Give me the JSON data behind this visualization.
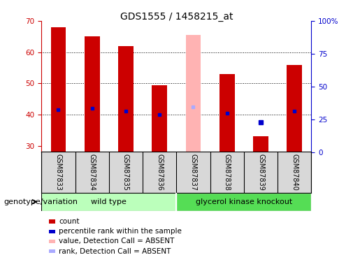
{
  "title": "GDS1555 / 1458215_at",
  "samples": [
    "GSM87833",
    "GSM87834",
    "GSM87835",
    "GSM87836",
    "GSM87837",
    "GSM87838",
    "GSM87839",
    "GSM87840"
  ],
  "count_values": [
    68,
    65,
    62,
    49.5,
    null,
    53,
    33,
    56
  ],
  "absent_value": [
    null,
    null,
    null,
    null,
    65.5,
    null,
    null,
    null
  ],
  "percentile_values": [
    41.5,
    42,
    41,
    40,
    null,
    40.5,
    null,
    41
  ],
  "absent_percentile": [
    null,
    null,
    null,
    null,
    42.5,
    null,
    null,
    null
  ],
  "standalone_percentile": [
    null,
    null,
    null,
    null,
    null,
    null,
    37.5,
    null
  ],
  "ylim": [
    28,
    70
  ],
  "yticks": [
    30,
    40,
    50,
    60,
    70
  ],
  "y2ticks": [
    0,
    25,
    50,
    75,
    100
  ],
  "count_color": "#cc0000",
  "absent_color": "#ffb3b3",
  "percentile_color": "#0000cc",
  "absent_percentile_color": "#aaaaff",
  "wildtype_color": "#bbffbb",
  "knockout_color": "#55dd55",
  "wildtype_label": "wild type",
  "knockout_label": "glycerol kinase knockout",
  "legend_items": [
    {
      "label": "count",
      "color": "#cc0000"
    },
    {
      "label": "percentile rank within the sample",
      "color": "#0000cc"
    },
    {
      "label": "value, Detection Call = ABSENT",
      "color": "#ffb3b3"
    },
    {
      "label": "rank, Detection Call = ABSENT",
      "color": "#aaaaff"
    }
  ],
  "left_label": "genotype/variation",
  "title_fontsize": 10,
  "tick_fontsize": 7.5,
  "label_fontsize": 8,
  "legend_fontsize": 7.5
}
